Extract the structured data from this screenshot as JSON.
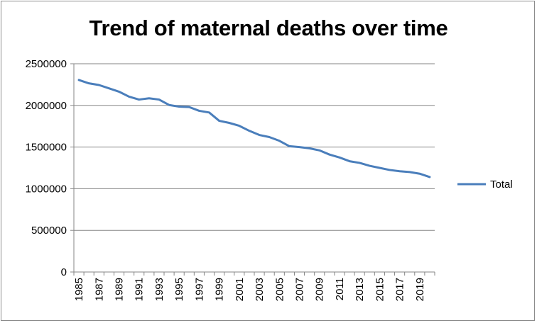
{
  "chart_data": {
    "type": "line",
    "title": "Trend of maternal deaths over time",
    "xlabel": "",
    "ylabel": "",
    "ylim": [
      0,
      2500000
    ],
    "y_ticks": [
      "0",
      "500000",
      "1000000",
      "1500000",
      "2000000",
      "2500000"
    ],
    "y_tick_values": [
      0,
      500000,
      1000000,
      1500000,
      2000000,
      2500000
    ],
    "x": [
      1985,
      1986,
      1987,
      1988,
      1989,
      1990,
      1991,
      1992,
      1993,
      1994,
      1995,
      1996,
      1997,
      1998,
      1999,
      2000,
      2001,
      2002,
      2003,
      2004,
      2005,
      2006,
      2007,
      2008,
      2009,
      2010,
      2011,
      2012,
      2013,
      2014,
      2015,
      2016,
      2017,
      2018,
      2019,
      2020
    ],
    "x_tick_labels": [
      "1985",
      "1987",
      "1989",
      "1991",
      "1993",
      "1995",
      "1997",
      "1999",
      "2001",
      "2003",
      "2005",
      "2007",
      "2009",
      "2011",
      "2013",
      "2015",
      "2017",
      "2019"
    ],
    "grid": true,
    "legend_position": "right",
    "series": [
      {
        "name": "Total",
        "color": "#4a7ebb",
        "values": [
          2305000,
          2265000,
          2245000,
          2205000,
          2165000,
          2105000,
          2070000,
          2085000,
          2070000,
          2005000,
          1985000,
          1980000,
          1935000,
          1915000,
          1815000,
          1790000,
          1755000,
          1695000,
          1645000,
          1620000,
          1575000,
          1510000,
          1500000,
          1485000,
          1460000,
          1410000,
          1375000,
          1330000,
          1310000,
          1275000,
          1250000,
          1225000,
          1210000,
          1200000,
          1180000,
          1140000
        ]
      }
    ]
  },
  "colors": {
    "axis": "#868686",
    "gridline": "#868686",
    "series": "#4a7ebb"
  }
}
